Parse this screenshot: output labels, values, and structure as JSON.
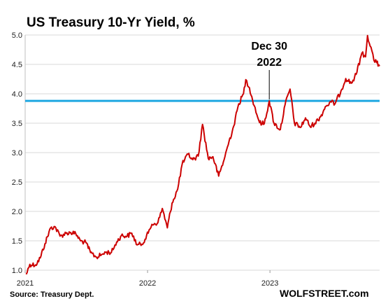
{
  "chart_data": {
    "type": "line",
    "title": "US Treasury  10-Yr Yield, %",
    "ylim": [
      1.0,
      5.0
    ],
    "y_ticks": [
      "1.0",
      "1.5",
      "2.0",
      "2.5",
      "3.0",
      "3.5",
      "4.0",
      "4.5",
      "5.0"
    ],
    "x_ticks": [
      "2021",
      "2022",
      "2023"
    ],
    "xlim": [
      "2021-01-01",
      "2023-11-24"
    ],
    "grid": "horizontal",
    "series": [
      {
        "color": "#cc0000",
        "x": [
          "2021-01-04",
          "2021-01-15",
          "2021-02-01",
          "2021-02-15",
          "2021-03-01",
          "2021-03-18",
          "2021-03-31",
          "2021-04-15",
          "2021-05-03",
          "2021-05-17",
          "2021-06-01",
          "2021-06-15",
          "2021-07-01",
          "2021-07-15",
          "2021-08-02",
          "2021-08-16",
          "2021-09-01",
          "2021-09-15",
          "2021-10-01",
          "2021-10-15",
          "2021-11-01",
          "2021-11-15",
          "2021-12-01",
          "2021-12-15",
          "2022-01-03",
          "2022-01-14",
          "2022-02-01",
          "2022-02-14",
          "2022-03-01",
          "2022-03-15",
          "2022-04-01",
          "2022-04-14",
          "2022-05-02",
          "2022-05-16",
          "2022-06-01",
          "2022-06-14",
          "2022-07-01",
          "2022-07-15",
          "2022-08-01",
          "2022-08-15",
          "2022-09-01",
          "2022-09-15",
          "2022-09-30",
          "2022-10-14",
          "2022-10-21",
          "2022-11-01",
          "2022-11-15",
          "2022-12-01",
          "2022-12-15",
          "2022-12-30",
          "2023-01-13",
          "2023-02-01",
          "2023-02-15",
          "2023-03-02",
          "2023-03-15",
          "2023-04-03",
          "2023-04-17",
          "2023-05-01",
          "2023-05-15",
          "2023-06-01",
          "2023-06-15",
          "2023-07-03",
          "2023-07-14",
          "2023-08-01",
          "2023-08-15",
          "2023-09-01",
          "2023-09-15",
          "2023-10-02",
          "2023-10-13",
          "2023-10-19",
          "2023-11-01",
          "2023-11-07",
          "2023-11-15",
          "2023-11-24"
        ],
        "values": [
          0.93,
          1.1,
          1.09,
          1.21,
          1.45,
          1.72,
          1.74,
          1.58,
          1.63,
          1.64,
          1.62,
          1.5,
          1.47,
          1.3,
          1.22,
          1.26,
          1.31,
          1.3,
          1.48,
          1.59,
          1.58,
          1.63,
          1.43,
          1.44,
          1.63,
          1.78,
          1.81,
          2.05,
          1.72,
          2.14,
          2.38,
          2.8,
          2.97,
          2.88,
          2.94,
          3.48,
          2.9,
          2.93,
          2.6,
          2.84,
          3.19,
          3.45,
          3.83,
          4.0,
          4.24,
          4.1,
          3.8,
          3.51,
          3.49,
          3.88,
          3.5,
          3.39,
          3.81,
          4.08,
          3.5,
          3.43,
          3.59,
          3.44,
          3.5,
          3.61,
          3.78,
          3.86,
          3.83,
          4.05,
          4.26,
          4.18,
          4.33,
          4.69,
          4.63,
          4.99,
          4.73,
          4.57,
          4.53,
          4.47
        ]
      }
    ],
    "reference_line": {
      "value": 3.88,
      "color": "#1ea7e1"
    },
    "annotation": {
      "line1": "Dec 30",
      "line2": "2022",
      "at_x": "2022-12-30"
    },
    "source": "Source: Treasury Dept.",
    "brand": "WOLFSTREET.com"
  }
}
